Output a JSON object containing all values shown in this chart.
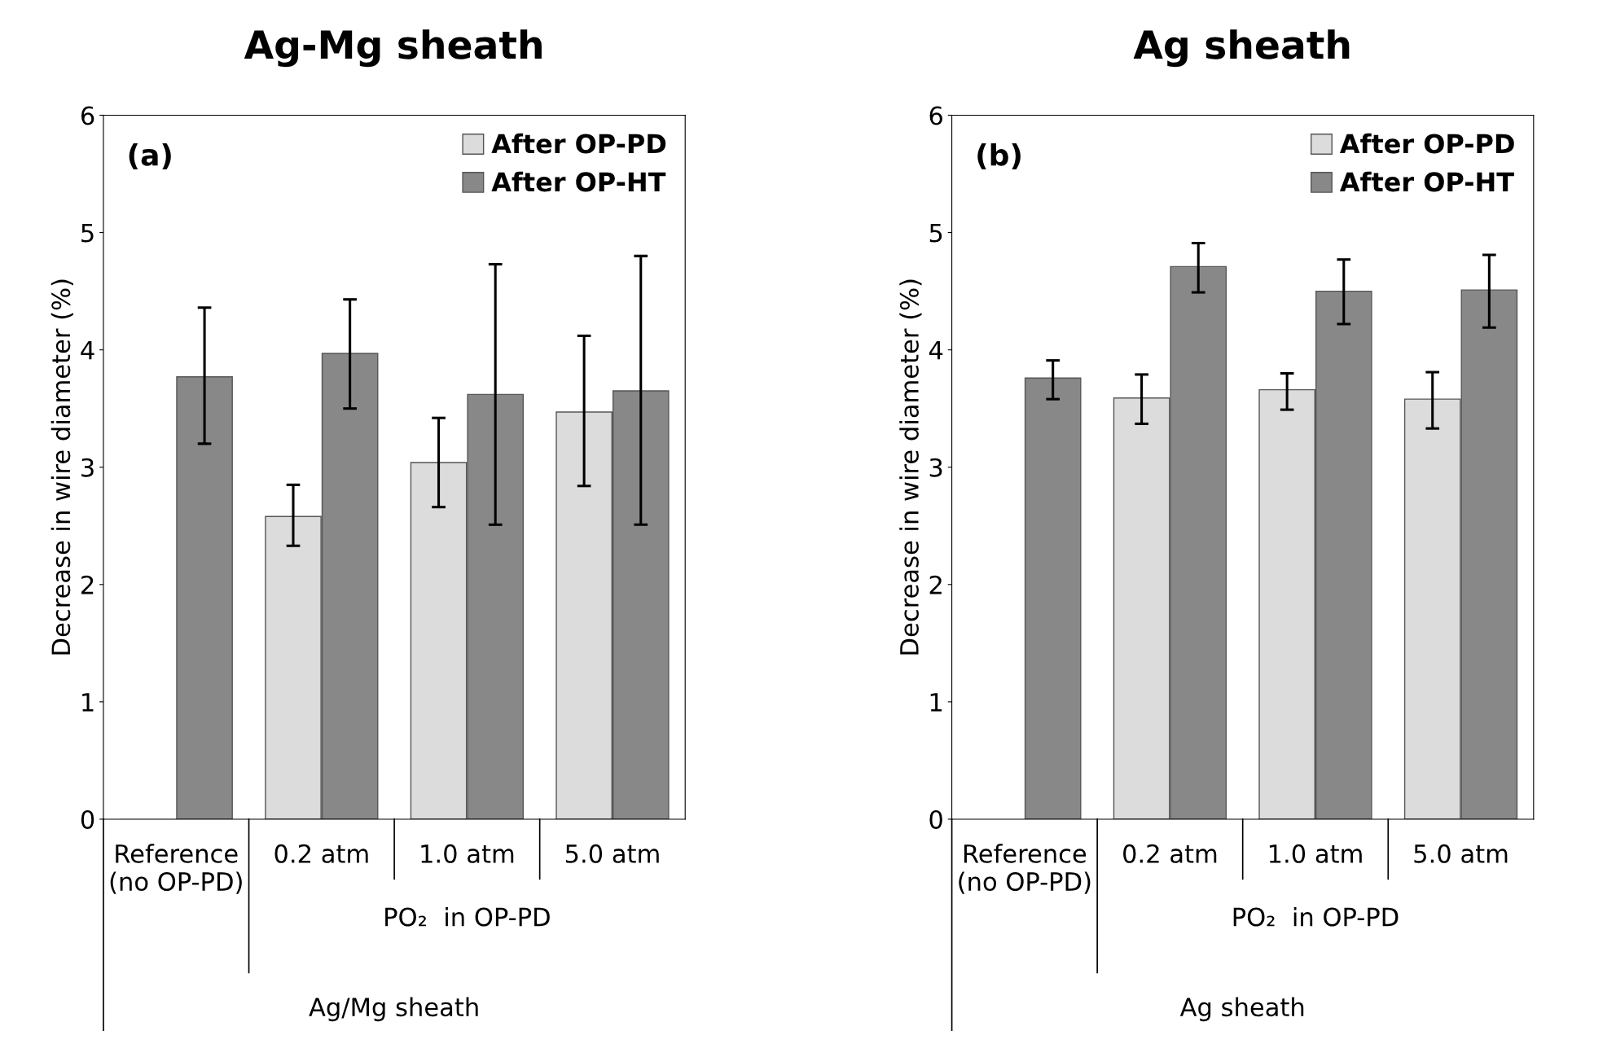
{
  "chart_data": [
    {
      "type": "bar",
      "title": "Ag-Mg sheath",
      "ylabel": "Decrease in wire diameter (%)",
      "categories": [
        "Reference\n(no OP-PD)",
        "0.2 atm",
        "1.0 atm",
        "5.0 atm"
      ],
      "ylim": [
        0,
        6
      ],
      "yticks": [
        0,
        1,
        2,
        3,
        4,
        5,
        6
      ],
      "legend": "top right",
      "grid": false,
      "series": [
        {
          "name": "After OP-PD",
          "color": "#dcdcdc",
          "values": [
            0,
            2.58,
            3.04,
            3.47
          ],
          "errors": [
            null,
            [
              2.33,
              2.85
            ],
            [
              2.66,
              3.42
            ],
            [
              2.84,
              4.12
            ]
          ]
        },
        {
          "name": "After OP-HT",
          "color": "#888888",
          "values": [
            3.77,
            3.97,
            3.62,
            3.65
          ],
          "errors": [
            [
              3.2,
              4.36
            ],
            [
              3.5,
              4.43
            ],
            [
              2.51,
              4.73
            ],
            [
              2.51,
              4.8
            ]
          ]
        }
      ],
      "annotations": [
        "(a)",
        "PO₂  in OP-PD",
        "Ag/Mg sheath"
      ]
    },
    {
      "type": "bar",
      "title": "Ag sheath",
      "ylabel": "Decrease in wire diameter (%)",
      "categories": [
        "Reference\n(no OP-PD)",
        "0.2 atm",
        "1.0 atm",
        "5.0 atm"
      ],
      "ylim": [
        0,
        6
      ],
      "yticks": [
        0,
        1,
        2,
        3,
        4,
        5,
        6
      ],
      "legend": "top right",
      "grid": false,
      "series": [
        {
          "name": "After OP-PD",
          "color": "#dcdcdc",
          "values": [
            null,
            3.59,
            3.66,
            3.58
          ],
          "errors": [
            null,
            [
              3.37,
              3.79
            ],
            [
              3.49,
              3.8
            ],
            [
              3.33,
              3.81
            ]
          ]
        },
        {
          "name": "After OP-HT",
          "color": "#888888",
          "values": [
            3.76,
            4.71,
            4.5,
            4.51
          ],
          "errors": [
            [
              3.58,
              3.91
            ],
            [
              4.49,
              4.91
            ],
            [
              4.22,
              4.77
            ],
            [
              4.19,
              4.81
            ]
          ]
        }
      ],
      "annotations": [
        "(b)",
        "PO₂  in OP-PD",
        "Ag sheath"
      ]
    }
  ]
}
